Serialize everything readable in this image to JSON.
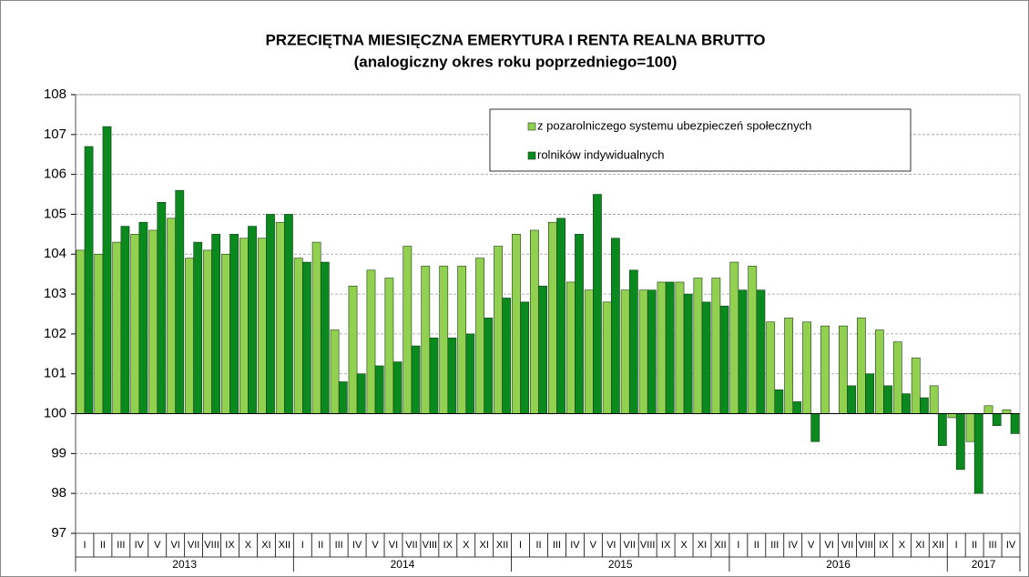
{
  "chart_data": {
    "type": "bar",
    "title": "PRZECIĘTNA MIESIĘCZNA EMERYTURA I RENTA REALNA BRUTTO",
    "subtitle": "(analogiczny okres roku poprzedniego=100)",
    "categories": [
      "I",
      "II",
      "III",
      "IV",
      "V",
      "VI",
      "VII",
      "VIII",
      "IX",
      "X",
      "XI",
      "XII",
      "I",
      "II",
      "III",
      "IV",
      "V",
      "VI",
      "VII",
      "VIII",
      "IX",
      "X",
      "XI",
      "XII",
      "I",
      "II",
      "III",
      "IV",
      "V",
      "VI",
      "VII",
      "VIII",
      "IX",
      "X",
      "XI",
      "XII",
      "I",
      "II",
      "III",
      "IV",
      "V",
      "VI",
      "VII",
      "VIII",
      "IX",
      "X",
      "XI",
      "XII",
      "I",
      "II",
      "III",
      "IV"
    ],
    "year_labels": [
      "2013",
      "2014",
      "2015",
      "2016",
      "2017"
    ],
    "series": [
      {
        "name": "z pozarolniczego systemu ubezpieczeń społecznych",
        "color": "#92d050",
        "values": [
          104.1,
          104.0,
          104.3,
          104.5,
          104.6,
          104.9,
          103.9,
          104.1,
          104.0,
          104.4,
          104.4,
          104.8,
          103.9,
          104.3,
          102.1,
          103.2,
          103.6,
          103.4,
          104.2,
          103.7,
          103.7,
          103.7,
          103.9,
          104.2,
          104.5,
          104.6,
          104.8,
          103.3,
          103.1,
          102.8,
          103.1,
          103.1,
          103.3,
          103.3,
          103.4,
          103.4,
          103.8,
          103.7,
          102.3,
          102.4,
          102.3,
          102.2,
          102.2,
          102.4,
          102.1,
          101.8,
          101.4,
          100.7,
          99.9,
          99.3,
          100.2,
          100.1
        ]
      },
      {
        "name": "rolników indywidualnych",
        "color": "#0a8a1e",
        "values": [
          106.7,
          107.2,
          104.7,
          104.8,
          105.3,
          105.6,
          104.3,
          104.5,
          104.5,
          104.7,
          105.0,
          105.0,
          103.8,
          103.8,
          100.8,
          101.0,
          101.2,
          101.3,
          101.7,
          101.9,
          101.9,
          102.0,
          102.4,
          102.9,
          102.8,
          103.2,
          104.9,
          104.5,
          105.5,
          104.4,
          103.6,
          103.1,
          103.3,
          103.0,
          102.8,
          102.7,
          103.1,
          103.1,
          100.6,
          100.3,
          99.3,
          100.0,
          100.7,
          101.0,
          100.7,
          100.5,
          100.4,
          99.2,
          98.6,
          98.0,
          99.7,
          99.5
        ]
      }
    ],
    "baseline": 100,
    "ylim": [
      97,
      108
    ],
    "yticks": [
      97,
      98,
      99,
      100,
      101,
      102,
      103,
      104,
      105,
      106,
      107,
      108
    ],
    "grid": true,
    "legend": "top-right"
  }
}
